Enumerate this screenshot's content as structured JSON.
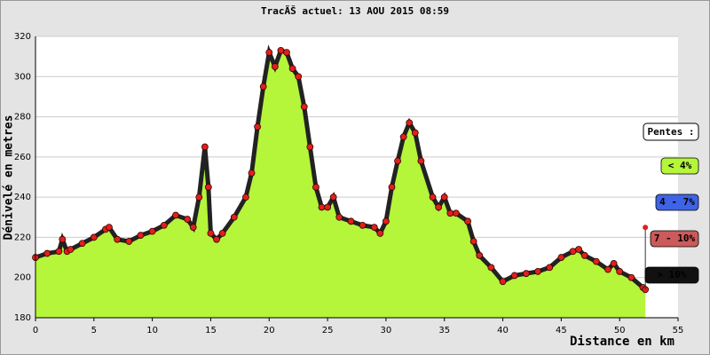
{
  "chart_data": {
    "type": "area",
    "title": "TracÃŠ actuel: 13 AOU 2015 08:59",
    "x_label": "Distance en km",
    "y_label": "Dénivelé en metres",
    "x": [
      0,
      1,
      2,
      2.3,
      2.7,
      3,
      4,
      5,
      6,
      6.3,
      7,
      8,
      9,
      10,
      11,
      12,
      13,
      13.5,
      14,
      14.5,
      14.8,
      15,
      15.5,
      16,
      17,
      18,
      18.5,
      19,
      19.5,
      20,
      20.5,
      21,
      21.5,
      22,
      22.5,
      23,
      23.5,
      24,
      24.5,
      25,
      25.5,
      26,
      27,
      28,
      29,
      29.5,
      30,
      30.5,
      31,
      31.5,
      32,
      32.5,
      33,
      34,
      34.5,
      35,
      35.5,
      36,
      37,
      37.5,
      38,
      39,
      40,
      41,
      42,
      43,
      44,
      45,
      46,
      46.5,
      47,
      48,
      49,
      49.5,
      50,
      51,
      52,
      52.2
    ],
    "series": [
      {
        "name": "Dénivelé",
        "color": "#b5f53a",
        "values": [
          210,
          212,
          213,
          219,
          213,
          214,
          217,
          220,
          224,
          225,
          219,
          218,
          221,
          223,
          226,
          231,
          229,
          225,
          240,
          265,
          245,
          222,
          219,
          222,
          230,
          240,
          252,
          275,
          295,
          312,
          305,
          313,
          312,
          304,
          300,
          285,
          265,
          245,
          235,
          235,
          240,
          230,
          228,
          226,
          225,
          222,
          228,
          245,
          258,
          270,
          277,
          272,
          258,
          240,
          235,
          240,
          232,
          232,
          228,
          218,
          211,
          205,
          198,
          201,
          202,
          203,
          205,
          210,
          213,
          214,
          211,
          208,
          204,
          207,
          203,
          200,
          195,
          194
        ]
      }
    ],
    "xlim": [
      0,
      55
    ],
    "ylim": [
      180,
      320
    ],
    "xticks": [
      0,
      5,
      10,
      15,
      20,
      25,
      30,
      35,
      40,
      45,
      50,
      55
    ],
    "yticks": [
      180,
      200,
      220,
      240,
      260,
      280,
      300,
      320
    ],
    "grid": true,
    "legend_title": "Pentes :",
    "legend": [
      {
        "label": "< 4%",
        "color": "#b5f53a"
      },
      {
        "label": "4 - 7%",
        "color": "#3f63e6"
      },
      {
        "label": "7 - 10%",
        "color": "#cc5a5a"
      },
      {
        "label": "> 10%",
        "color": "#111111"
      }
    ]
  }
}
